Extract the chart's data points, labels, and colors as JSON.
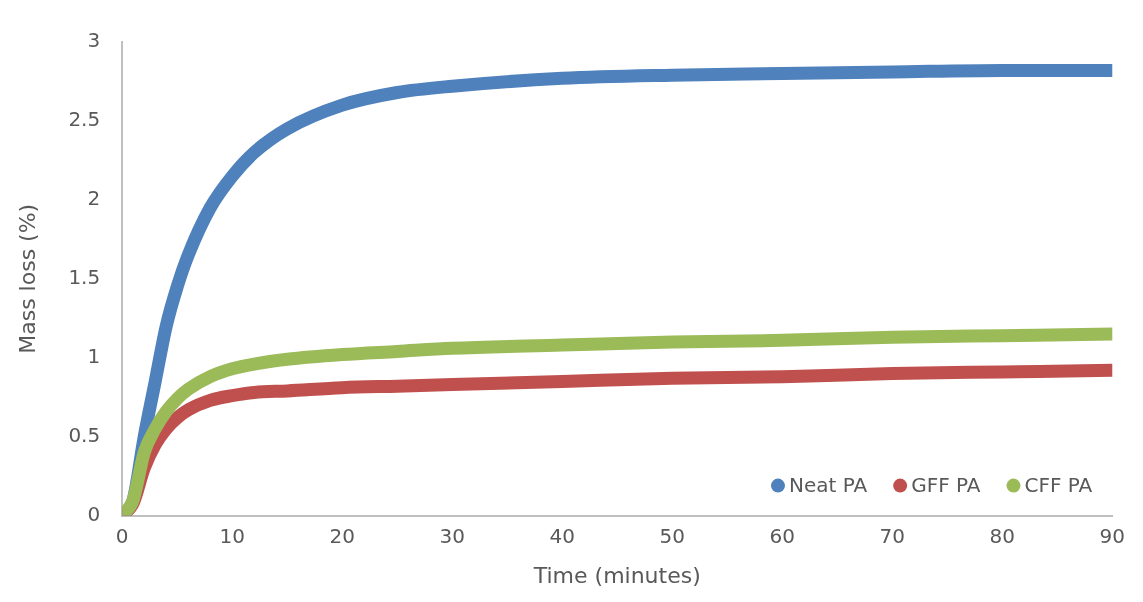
{
  "chart_data": {
    "type": "line",
    "xlabel": "Time (minutes)",
    "ylabel": "Mass loss (%)",
    "xlim": [
      0,
      90
    ],
    "xticks": [
      0,
      10,
      20,
      30,
      40,
      50,
      60,
      70,
      80,
      90
    ],
    "ylim": [
      0,
      3
    ],
    "yticks": [
      0,
      0.5,
      1,
      1.5,
      2,
      2.5,
      3
    ],
    "grid": false,
    "legend": "bottom right",
    "marker": "none",
    "line_style": "solid",
    "x": [
      0,
      1,
      2,
      3,
      4,
      5,
      6,
      8,
      10,
      12,
      15,
      20,
      25,
      30,
      40,
      50,
      60,
      70,
      80,
      90
    ],
    "series": [
      {
        "name": "Neat PA",
        "color": "#4f81bd",
        "values": [
          0,
          0.1,
          0.5,
          0.85,
          1.2,
          1.45,
          1.65,
          1.95,
          2.15,
          2.3,
          2.45,
          2.6,
          2.68,
          2.72,
          2.77,
          2.79,
          2.8,
          2.81,
          2.82,
          2.82
        ]
      },
      {
        "name": "GFF PA",
        "color": "#c0504d",
        "values": [
          0,
          0.08,
          0.3,
          0.45,
          0.55,
          0.62,
          0.67,
          0.73,
          0.76,
          0.78,
          0.79,
          0.81,
          0.82,
          0.83,
          0.85,
          0.87,
          0.88,
          0.9,
          0.91,
          0.92
        ]
      },
      {
        "name": "CFF PA",
        "color": "#9bbb59",
        "values": [
          0,
          0.1,
          0.4,
          0.55,
          0.66,
          0.74,
          0.8,
          0.88,
          0.93,
          0.96,
          0.99,
          1.02,
          1.04,
          1.06,
          1.08,
          1.1,
          1.11,
          1.13,
          1.14,
          1.15
        ]
      }
    ]
  }
}
